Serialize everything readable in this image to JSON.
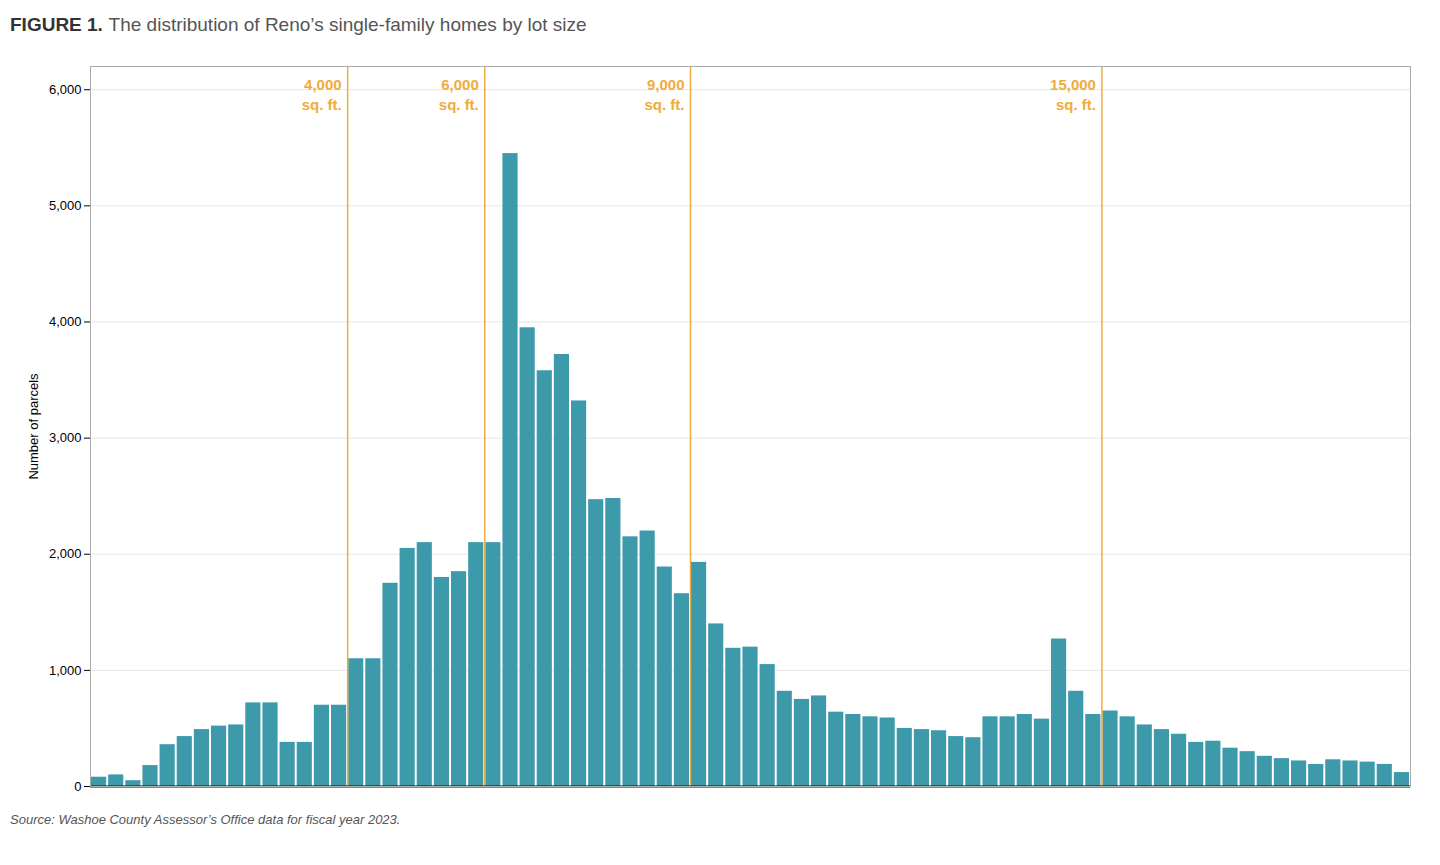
{
  "chart_data": {
    "type": "histogram",
    "title": "FIGURE 1.",
    "subtitle": "The distribution of Reno’s single-family homes by lot size",
    "caption": "Source: Washoe County Assessor’s Office data for fiscal year 2023.",
    "ylabel": "Number of parcels",
    "bins": [
      250,
      500,
      750,
      1000,
      1250,
      1500,
      1750,
      2000,
      2250,
      2500,
      2750,
      3000,
      3250,
      3500,
      3750,
      4000,
      4250,
      4500,
      4750,
      5000,
      5250,
      5500,
      5750,
      6000,
      6250,
      6500,
      6750,
      7000,
      7250,
      7500,
      7750,
      8000,
      8250,
      8500,
      8750,
      9000,
      9250,
      9500,
      9750,
      10000,
      10250,
      10500,
      10750,
      11000,
      11250,
      11500,
      11750,
      12000,
      12250,
      12500,
      12750,
      13000,
      13250,
      13500,
      13750,
      14000,
      14250,
      14500,
      14750,
      15000,
      15250,
      15500,
      15750,
      16000,
      16250,
      16500,
      16750,
      17000,
      17250,
      17500,
      17750,
      18000,
      18250,
      18500,
      18750,
      19000,
      19250,
      19500
    ],
    "values": [
      80,
      100,
      50,
      180,
      360,
      430,
      490,
      520,
      530,
      720,
      720,
      380,
      380,
      700,
      700,
      1100,
      1100,
      1750,
      2050,
      2100,
      1800,
      1850,
      2100,
      2100,
      5450,
      3950,
      3580,
      3720,
      3320,
      2470,
      2480,
      2150,
      2200,
      1890,
      1660,
      1930,
      1400,
      1190,
      1200,
      1050,
      820,
      750,
      780,
      640,
      620,
      600,
      590,
      500,
      490,
      480,
      430,
      420,
      600,
      600,
      620,
      580,
      1270,
      820,
      620,
      650,
      600,
      530,
      490,
      450,
      380,
      390,
      330,
      300,
      260,
      240,
      220,
      190,
      230,
      220,
      210,
      190,
      120
    ],
    "color": "#3d9aaa",
    "xlim": [
      250,
      19500
    ],
    "ylim": [
      0,
      6200
    ],
    "yticks": [
      0,
      {
        "value": 1000,
        "label": "1,000"
      },
      {
        "value": 2000,
        "label": "2,000"
      },
      {
        "value": 3000,
        "label": "3,000"
      },
      {
        "value": 4000,
        "label": "4,000"
      },
      {
        "value": 5000,
        "label": "5,000"
      },
      {
        "value": 6000,
        "label": "6,000"
      }
    ],
    "grid": true,
    "tick_labels": "y",
    "annotations": [
      {
        "x": 4000,
        "text": "4,000\nsq. ft.",
        "color": "#f0ac3a"
      },
      {
        "x": 6000,
        "text": "6,000\nsq. ft.",
        "color": "#f0ac3a"
      },
      {
        "x": 9000,
        "text": "9,000\nsq. ft.",
        "color": "#f0ac3a"
      },
      {
        "x": 15000,
        "text": "15,000\nsq. ft.",
        "color": "#f0ac3a"
      }
    ]
  }
}
